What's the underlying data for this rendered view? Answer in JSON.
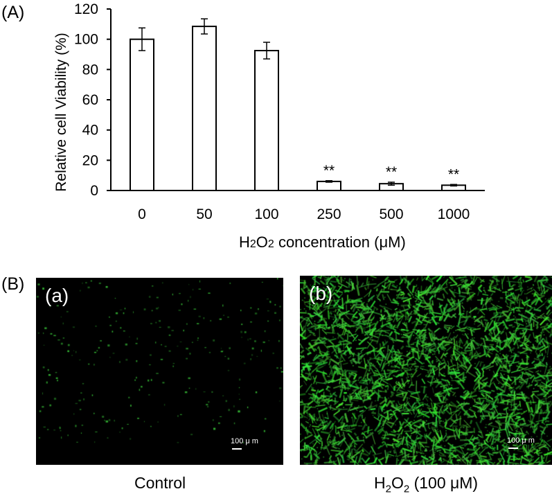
{
  "panel_a_label": "(A)",
  "panel_b_label": "(B)",
  "chart_data": {
    "type": "bar",
    "categories": [
      "0",
      "50",
      "100",
      "250",
      "500",
      "1000"
    ],
    "values": [
      100,
      108.5,
      92.5,
      6,
      4.5,
      3.5
    ],
    "errors": [
      7.5,
      5,
      5.5,
      0.5,
      1,
      0.5
    ],
    "annotations": [
      "",
      "",
      "",
      "**",
      "**",
      "**"
    ],
    "ylabel": "Relative cell Viability (%)",
    "xlabel_parts": [
      "H",
      "2",
      "O",
      "2",
      " concentration (μM)"
    ],
    "yticks": [
      0,
      20,
      40,
      60,
      80,
      100,
      120
    ],
    "ylim": [
      0,
      120
    ],
    "bar_fill": "#ffffff",
    "bar_stroke": "#000000",
    "grid": false
  },
  "images": {
    "a": {
      "label": "(a)",
      "scale_text": "100 μ m",
      "caption": "Control",
      "fluorescence": "sparse"
    },
    "b": {
      "label": "(b)",
      "scale_text": "100 μ m",
      "caption_parts": [
        "H",
        "2",
        "O",
        "2",
        " (100 μM)"
      ],
      "fluorescence": "dense"
    },
    "fluorescence_color": "#33d633"
  }
}
